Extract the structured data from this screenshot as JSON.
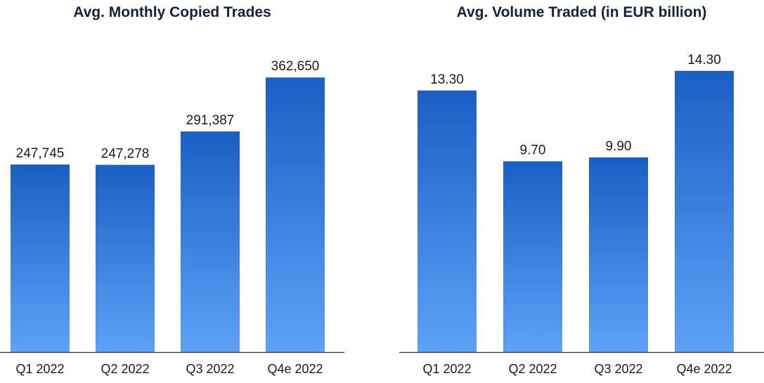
{
  "colors": {
    "bar_top": "#1a5fc4",
    "bar_bottom": "#5da2f7",
    "axis": "#333333"
  },
  "chart_data": [
    {
      "type": "bar",
      "title": "Avg. Monthly Copied Trades",
      "categories": [
        "Q1 2022",
        "Q2 2022",
        "Q3 2022",
        "Q4e 2022"
      ],
      "values": [
        247745,
        247278,
        291387,
        362650
      ],
      "labels": [
        "247,745",
        "247,278",
        "291,387",
        "362,650"
      ],
      "ylim": [
        0,
        400000
      ],
      "grid": false
    },
    {
      "type": "bar",
      "title": "Avg. Volume Traded (in EUR billion)",
      "categories": [
        "Q1 2022",
        "Q2 2022",
        "Q3 2022",
        "Q4e 2022"
      ],
      "values": [
        13.3,
        9.7,
        9.9,
        14.3
      ],
      "labels": [
        "13.30",
        "9.70",
        "9.90",
        "14.30"
      ],
      "ylim": [
        0,
        15.4
      ],
      "grid": false
    }
  ]
}
